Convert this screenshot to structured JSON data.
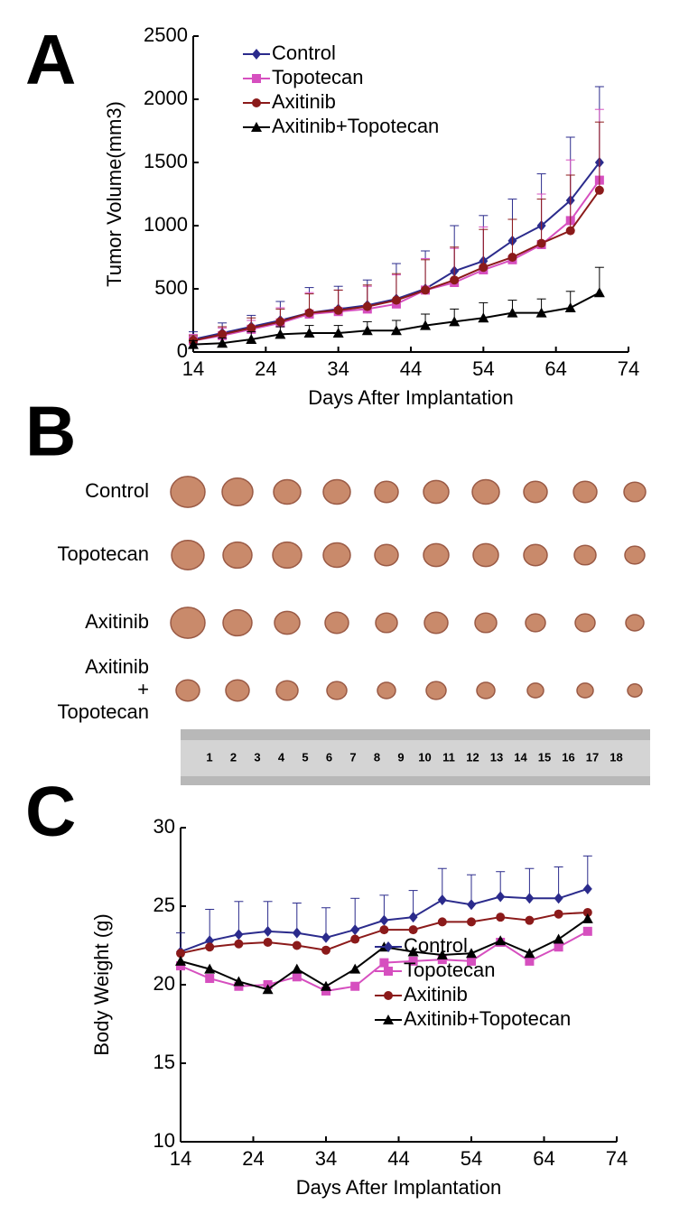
{
  "panel_labels": [
    "A",
    "B",
    "C"
  ],
  "photo": {
    "row_labels": [
      [
        "Control"
      ],
      [
        "Topotecan"
      ],
      [
        "Axitinib"
      ],
      [
        "Axitinib",
        "+",
        "Topotecan"
      ]
    ],
    "ruler_labels": [
      1,
      2,
      3,
      4,
      5,
      6,
      7,
      8,
      9,
      10,
      11,
      12,
      13,
      14,
      15,
      16,
      17,
      18
    ]
  },
  "chart_data": [
    {
      "type": "line",
      "xlabel": "Days After Implantation",
      "ylabel": "Tumor Volume(mm3)",
      "x": [
        14,
        18,
        22,
        26,
        30,
        34,
        38,
        42,
        46,
        50,
        54,
        58,
        62,
        66,
        70
      ],
      "xlim": [
        14,
        74
      ],
      "xticks": [
        14,
        24,
        34,
        44,
        54,
        64,
        74
      ],
      "ylim": [
        0,
        2500
      ],
      "yticks": [
        0,
        500,
        1000,
        1500,
        2000,
        2500
      ],
      "legend": "upper left",
      "series": [
        {
          "name": "Control",
          "color": "#2b2b8c",
          "marker": "diamond",
          "values": [
            100,
            150,
            200,
            250,
            310,
            340,
            370,
            420,
            500,
            640,
            720,
            880,
            1000,
            1200,
            1500
          ],
          "errors": [
            60,
            80,
            90,
            150,
            200,
            180,
            200,
            280,
            300,
            360,
            360,
            330,
            410,
            500,
            600
          ]
        },
        {
          "name": "Topotecan",
          "color": "#d64fbf",
          "marker": "square",
          "values": [
            90,
            130,
            180,
            230,
            300,
            320,
            340,
            380,
            490,
            550,
            650,
            730,
            850,
            1040,
            1360
          ],
          "errors": [
            50,
            60,
            70,
            120,
            170,
            170,
            180,
            230,
            250,
            270,
            340,
            320,
            400,
            480,
            560
          ]
        },
        {
          "name": "Axitinib",
          "color": "#8b1a1a",
          "marker": "circle",
          "values": [
            90,
            140,
            190,
            240,
            310,
            330,
            360,
            410,
            490,
            570,
            670,
            750,
            860,
            960,
            1280
          ],
          "errors": [
            40,
            60,
            80,
            100,
            150,
            160,
            170,
            210,
            240,
            260,
            300,
            300,
            350,
            440,
            540
          ]
        },
        {
          "name": "Axitinib+Topotecan",
          "color": "#000000",
          "marker": "triangle",
          "values": [
            60,
            70,
            100,
            140,
            150,
            150,
            170,
            170,
            210,
            240,
            270,
            310,
            310,
            350,
            470
          ],
          "errors": [
            30,
            40,
            60,
            60,
            60,
            60,
            70,
            80,
            90,
            100,
            120,
            100,
            110,
            130,
            200
          ]
        }
      ]
    },
    {
      "type": "line",
      "xlabel": "Days After Implantation",
      "ylabel": "Body Weight (g)",
      "x": [
        14,
        18,
        22,
        26,
        30,
        34,
        38,
        42,
        46,
        50,
        54,
        58,
        62,
        66,
        70
      ],
      "xlim": [
        14,
        74
      ],
      "xticks": [
        14,
        24,
        34,
        44,
        54,
        64,
        74
      ],
      "ylim": [
        10,
        30
      ],
      "yticks": [
        10,
        15,
        20,
        25,
        30
      ],
      "legend": "lower right",
      "series": [
        {
          "name": "Control",
          "color": "#2b2b8c",
          "marker": "diamond",
          "values": [
            22.1,
            22.8,
            23.2,
            23.4,
            23.3,
            23.0,
            23.5,
            24.1,
            24.3,
            25.4,
            25.1,
            25.6,
            25.5,
            25.5,
            26.1
          ],
          "errors": [
            1.2,
            2.0,
            2.1,
            1.9,
            1.9,
            1.9,
            2.0,
            1.6,
            1.7,
            2.0,
            1.9,
            1.6,
            1.9,
            2.0,
            2.1
          ]
        },
        {
          "name": "Topotecan",
          "color": "#d64fbf",
          "marker": "square",
          "values": [
            21.2,
            20.4,
            19.9,
            20.0,
            20.5,
            19.6,
            19.9,
            21.4,
            21.5,
            21.6,
            21.5,
            22.7,
            21.5,
            22.4,
            23.4
          ]
        },
        {
          "name": "Axitinib",
          "color": "#8b1a1a",
          "marker": "circle",
          "values": [
            22.0,
            22.4,
            22.6,
            22.7,
            22.5,
            22.2,
            22.9,
            23.5,
            23.5,
            24.0,
            24.0,
            24.3,
            24.1,
            24.5,
            24.6
          ]
        },
        {
          "name": "Axitinib+Topotecan",
          "color": "#000000",
          "marker": "triangle",
          "values": [
            21.5,
            21.0,
            20.2,
            19.7,
            21.0,
            19.9,
            21.0,
            22.4,
            22.1,
            21.9,
            22.0,
            22.8,
            22.0,
            22.9,
            24.2
          ]
        }
      ]
    }
  ]
}
